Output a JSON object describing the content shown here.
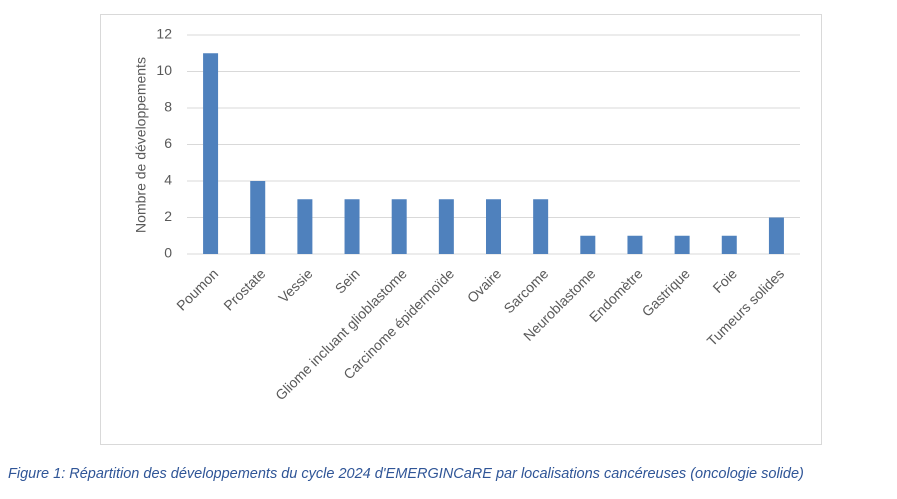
{
  "chart_data": {
    "type": "bar",
    "y_label": "Nombre de développements",
    "categories": [
      "Poumon",
      "Prostate",
      "Vessie",
      "Sein",
      "Gliome incluant glioblastome",
      "Carcinome épidermoïde",
      "Ovaire",
      "Sarcome",
      "Neuroblastome",
      "Endomètre",
      "Gastrique",
      "Foie",
      "Tumeurs solides"
    ],
    "values": [
      11,
      4,
      3,
      3,
      3,
      3,
      3,
      3,
      1,
      1,
      1,
      1,
      2
    ],
    "color": "#4f81bd",
    "ylim": [
      0,
      12
    ],
    "yticks": [
      0,
      2,
      4,
      6,
      8,
      10,
      12
    ],
    "grid": true
  },
  "caption": "Figure 1: Répartition des développements du cycle 2024 d'EMERGINCaRE par localisations cancéreuses (oncologie solide)"
}
